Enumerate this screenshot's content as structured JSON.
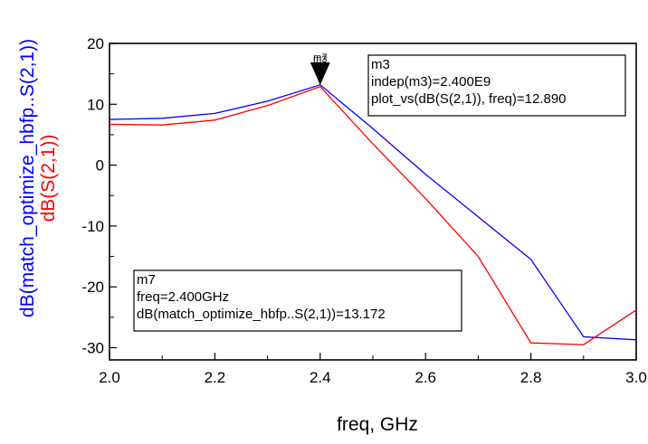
{
  "chart_data": {
    "type": "line",
    "xlabel": "freq, GHz",
    "ylabel_series": [
      "dB(match_optimize_hbfp..S(2,1))",
      "dB(S(2,1))"
    ],
    "xlim": [
      2.0,
      3.0
    ],
    "ylim": [
      -32,
      20
    ],
    "xticks": [
      "2.0",
      "2.2",
      "2.4",
      "2.6",
      "2.8",
      "3.0"
    ],
    "yticks": [
      "20",
      "10",
      "0",
      "-10",
      "-20",
      "-30"
    ],
    "grid": false,
    "series": [
      {
        "name": "dB(match_optimize_hbfp..S(2,1))",
        "color": "#0000ff",
        "x": [
          2.0,
          2.1,
          2.2,
          2.3,
          2.4,
          2.5,
          2.6,
          2.7,
          2.8,
          2.9,
          3.0
        ],
        "y": [
          7.5,
          7.7,
          8.5,
          10.5,
          13.2,
          6.0,
          -1.5,
          -8.5,
          -15.5,
          -28.2,
          -28.7
        ]
      },
      {
        "name": "dB(S(2,1))",
        "color": "#ff0000",
        "x": [
          2.0,
          2.1,
          2.2,
          2.3,
          2.4,
          2.5,
          2.6,
          2.7,
          2.8,
          2.9,
          3.0
        ],
        "y": [
          6.7,
          6.6,
          7.4,
          9.8,
          12.9,
          3.5,
          -5.5,
          -15.0,
          -29.2,
          -29.5,
          -23.8
        ]
      }
    ],
    "markers": [
      {
        "name": "m3",
        "x": 2.4,
        "y": 12.89,
        "lines": [
          "m3",
          "indep(m3)=2.400E9",
          "plot_vs(dB(S(2,1)), freq)=12.890"
        ]
      },
      {
        "name": "m7",
        "x": 2.4,
        "y": 13.172,
        "lines": [
          "m7",
          "freq=2.400GHz",
          "dB(match_optimize_hbfp..S(2,1))=13.172"
        ]
      }
    ],
    "marker_glyph_labels": [
      "m7",
      "m3"
    ]
  }
}
